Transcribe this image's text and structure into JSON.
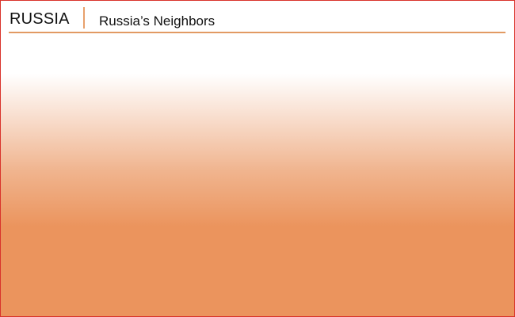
{
  "header": {
    "section": "RUSSIA",
    "title": "Russia’s Neighbors"
  },
  "colors": {
    "border": "#d9332b",
    "accent": "#e29a63",
    "gradient_bottom": "#eb945d"
  }
}
